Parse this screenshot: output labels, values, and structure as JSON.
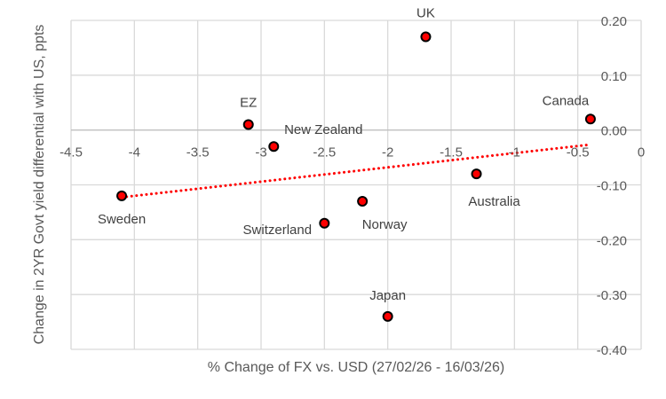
{
  "chart_data": {
    "type": "scatter",
    "xlabel": "% Change of FX vs. USD (27/02/26 - 16/03/26)",
    "ylabel": "Change in 2YR Govt yield differential with US, ppts",
    "xlim": [
      -4.5,
      0
    ],
    "ylim": [
      -0.4,
      0.2
    ],
    "xticks": [
      "-4.5",
      "-4",
      "-3.5",
      "-3",
      "-2.5",
      "-2",
      "-1.5",
      "-1",
      "-0.5",
      "0"
    ],
    "yticks": [
      "0.20",
      "0.10",
      "0.00",
      "-0.10",
      "-0.20",
      "-0.30",
      "-0.40"
    ],
    "grid": true,
    "trendline": "linear, dotted",
    "colors": {
      "marker": "#FF0000",
      "marker_edge": "#000000",
      "trendline": "#FF0000",
      "grid": "#D9D9D9"
    },
    "points": [
      {
        "label": "UK",
        "x": -1.7,
        "y": 0.17
      },
      {
        "label": "Canada",
        "x": -0.4,
        "y": 0.02
      },
      {
        "label": "EZ",
        "x": -3.1,
        "y": 0.01
      },
      {
        "label": "New Zealand",
        "x": -2.9,
        "y": -0.03
      },
      {
        "label": "Sweden",
        "x": -4.1,
        "y": -0.12
      },
      {
        "label": "Australia",
        "x": -1.3,
        "y": -0.08
      },
      {
        "label": "Norway",
        "x": -2.2,
        "y": -0.13
      },
      {
        "label": "Switzerland",
        "x": -2.5,
        "y": -0.17
      },
      {
        "label": "Japan",
        "x": -2.0,
        "y": -0.34
      }
    ]
  }
}
